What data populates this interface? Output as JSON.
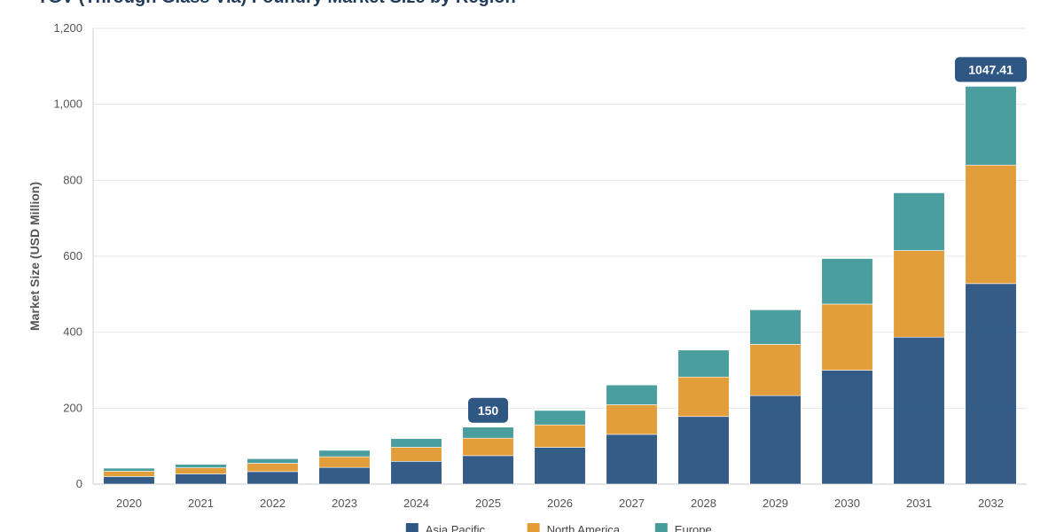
{
  "chart_data": {
    "type": "bar",
    "stacked": true,
    "title": "TGV (Through Glass Via) Foundry Market Size by Region",
    "xlabel": "",
    "ylabel": "Market Size (USD Million)",
    "ylim": [
      0,
      1200
    ],
    "yticks": [
      0,
      200,
      400,
      600,
      800,
      1000,
      1200
    ],
    "ytick_labels": [
      "0",
      "200",
      "400",
      "600",
      "800",
      "1,000",
      "1,200"
    ],
    "grid": true,
    "legend_position": "bottom",
    "categories": [
      "2020",
      "2021",
      "2022",
      "2023",
      "2024",
      "2025",
      "2026",
      "2027",
      "2028",
      "2029",
      "2030",
      "2031",
      "2032"
    ],
    "series": [
      {
        "name": "Asia Pacific",
        "color": "#2e5784",
        "values": [
          20,
          27,
          33,
          44,
          60,
          75,
          97,
          131,
          178,
          233,
          300,
          387,
          528
        ]
      },
      {
        "name": "North America",
        "color": "#e39b36",
        "values": [
          14,
          16,
          22,
          28,
          37,
          46,
          59,
          78,
          104,
          135,
          174,
          228,
          312
        ]
      },
      {
        "name": "Europe",
        "color": "#469b9b",
        "values": [
          8,
          9,
          12,
          17,
          23,
          29,
          38,
          52,
          71,
          91,
          120,
          152,
          207.41
        ]
      }
    ],
    "annotations": [
      {
        "category": "2025",
        "text": "150"
      },
      {
        "category": "2032",
        "text": "1047.41"
      }
    ]
  }
}
